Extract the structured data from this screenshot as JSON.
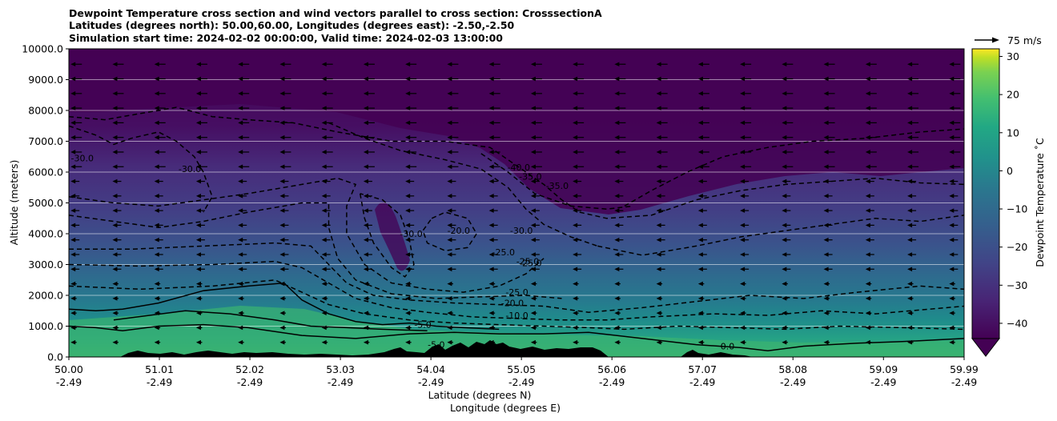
{
  "chart_data": {
    "type": "heatmap",
    "title_lines": [
      "Dewpoint Temperature cross section and wind vectors parallel to cross section: CrosssectionA",
      "Latitudes (degrees north): 50.00,60.00, Longitudes (degrees east): -2.50,-2.50",
      "Simulation start time: 2024-02-02 00:00:00, Valid time: 2024-02-03 13:00:00"
    ],
    "ylabel": "Altitude (meters)",
    "xlabel_lines": [
      "Latitude (degrees N)",
      "Longitude (degrees E)"
    ],
    "ylim": [
      0,
      10000
    ],
    "y_ticks": [
      0,
      1000,
      2000,
      3000,
      4000,
      5000,
      6000,
      7000,
      8000,
      9000,
      10000
    ],
    "y_tick_labels": [
      "0.0",
      "1000.0",
      "2000.0",
      "3000.0",
      "4000.0",
      "5000.0",
      "6000.0",
      "7000.0",
      "8000.0",
      "9000.0",
      "10000.0"
    ],
    "x_ticks": [
      {
        "lat": 50.0,
        "lat_label": "50.00",
        "lon_label": "-2.49"
      },
      {
        "lat": 51.01,
        "lat_label": "51.01",
        "lon_label": "-2.49"
      },
      {
        "lat": 52.02,
        "lat_label": "52.02",
        "lon_label": "-2.49"
      },
      {
        "lat": 53.03,
        "lat_label": "53.03",
        "lon_label": "-2.49"
      },
      {
        "lat": 54.04,
        "lat_label": "54.04",
        "lon_label": "-2.49"
      },
      {
        "lat": 55.05,
        "lat_label": "55.05",
        "lon_label": "-2.49"
      },
      {
        "lat": 56.06,
        "lat_label": "56.06",
        "lon_label": "-2.49"
      },
      {
        "lat": 57.07,
        "lat_label": "57.07",
        "lon_label": "-2.49"
      },
      {
        "lat": 58.08,
        "lat_label": "58.08",
        "lon_label": "-2.49"
      },
      {
        "lat": 59.09,
        "lat_label": "59.09",
        "lon_label": "-2.49"
      },
      {
        "lat": 59.99,
        "lat_label": "59.99",
        "lon_label": "-2.49"
      }
    ],
    "xlim": [
      50.0,
      59.99
    ],
    "colorbar": {
      "label": "Dewpoint Temperature $^\\circ$C",
      "label_display": "Dewpoint Temperature ˚C",
      "range": [
        -44,
        32
      ],
      "ticks": [
        -40,
        -30,
        -20,
        -10,
        0,
        10,
        20,
        30
      ],
      "tick_labels": [
        "−40",
        "−30",
        "−20",
        "−10",
        "0",
        "10",
        "20",
        "30"
      ],
      "extend": "min",
      "colormap": "viridis"
    },
    "wind_key": {
      "label": "75 m/s",
      "value": 75
    },
    "grid": "horizontal",
    "contour_labels": [
      {
        "text": "-30.0",
        "lat": 50.15,
        "alt": 6350
      },
      {
        "text": "-30.0",
        "lat": 51.35,
        "alt": 6000
      },
      {
        "text": "-30.0",
        "lat": 53.82,
        "alt": 3900
      },
      {
        "text": "-20.0",
        "lat": 54.35,
        "alt": 4000
      },
      {
        "text": "-40.0",
        "lat": 55.02,
        "alt": 6050
      },
      {
        "text": "-35.0",
        "lat": 55.15,
        "alt": 5750
      },
      {
        "text": "-35.0",
        "lat": 55.45,
        "alt": 5450
      },
      {
        "text": "-30.0",
        "lat": 55.05,
        "alt": 4000
      },
      {
        "text": "-25.0",
        "lat": 54.85,
        "alt": 3300
      },
      {
        "text": "-25.0",
        "lat": 55.15,
        "alt": 2950
      },
      {
        "text": "-25.0",
        "lat": 55.12,
        "alt": 3000
      },
      {
        "text": "-25.0",
        "lat": 55.0,
        "alt": 2000
      },
      {
        "text": "-20.0",
        "lat": 54.95,
        "alt": 1650
      },
      {
        "text": "-10.0",
        "lat": 55.0,
        "alt": 1250
      },
      {
        "text": "-5.0",
        "lat": 53.95,
        "alt": 950
      },
      {
        "text": "-5.0",
        "lat": 54.1,
        "alt": 300
      },
      {
        "text": "0.0",
        "lat": 57.35,
        "alt": 250
      }
    ],
    "solid_contours": [
      {
        "level": 0,
        "points": [
          [
            50.0,
            1000
          ],
          [
            50.3,
            950
          ],
          [
            50.6,
            850
          ],
          [
            51.0,
            1000
          ],
          [
            51.5,
            1050
          ],
          [
            52.0,
            950
          ],
          [
            52.6,
            700
          ],
          [
            53.2,
            600
          ],
          [
            53.8,
            750
          ],
          [
            54.3,
            800
          ],
          [
            54.8,
            750
          ],
          [
            55.3,
            750
          ],
          [
            55.8,
            800
          ],
          [
            56.4,
            600
          ],
          [
            57.0,
            400
          ],
          [
            57.5,
            300
          ],
          [
            57.8,
            200
          ],
          [
            58.2,
            350
          ],
          [
            58.8,
            450
          ],
          [
            59.3,
            500
          ],
          [
            59.99,
            600
          ]
        ]
      },
      {
        "level": -5,
        "points": [
          [
            50.0,
            1550
          ],
          [
            50.3,
            1500
          ],
          [
            50.6,
            1550
          ],
          [
            51.0,
            1750
          ],
          [
            51.5,
            2150
          ],
          [
            52.0,
            2300
          ],
          [
            52.4,
            2400
          ],
          [
            52.6,
            1850
          ],
          [
            52.9,
            1400
          ],
          [
            53.2,
            1150
          ],
          [
            53.5,
            1050
          ],
          [
            53.8,
            1100
          ],
          [
            54.1,
            1000
          ],
          [
            54.4,
            950
          ],
          [
            54.8,
            900
          ]
        ]
      },
      {
        "level": -5,
        "points": [
          [
            50.5,
            1200
          ],
          [
            50.9,
            1350
          ],
          [
            51.3,
            1500
          ],
          [
            51.8,
            1400
          ],
          [
            52.3,
            1200
          ],
          [
            52.7,
            1000
          ],
          [
            53.1,
            950
          ],
          [
            53.5,
            900
          ],
          [
            54.0,
            850
          ]
        ]
      }
    ],
    "dashed_contours": [
      {
        "level": -30,
        "points": [
          [
            50.0,
            7500
          ],
          [
            50.3,
            7200
          ],
          [
            50.5,
            6900
          ],
          [
            50.7,
            7100
          ],
          [
            51.0,
            7300
          ],
          [
            51.2,
            7000
          ],
          [
            51.4,
            6500
          ],
          [
            51.5,
            6000
          ],
          [
            51.6,
            5200
          ],
          [
            51.5,
            4700
          ]
        ]
      },
      {
        "level": -30,
        "points": [
          [
            50.0,
            7800
          ],
          [
            50.4,
            7700
          ],
          [
            50.8,
            7900
          ],
          [
            51.2,
            8100
          ],
          [
            51.6,
            7800
          ],
          [
            52.0,
            7700
          ],
          [
            52.5,
            7600
          ],
          [
            53.0,
            7300
          ],
          [
            53.6,
            7000
          ],
          [
            54.2,
            7000
          ],
          [
            54.7,
            6800
          ],
          [
            55.0,
            6200
          ],
          [
            55.3,
            5600
          ],
          [
            55.5,
            5100
          ],
          [
            55.7,
            4700
          ]
        ]
      },
      {
        "level": -30,
        "points": [
          [
            52.9,
            7600
          ],
          [
            53.3,
            7100
          ],
          [
            53.7,
            6700
          ],
          [
            54.2,
            6400
          ],
          [
            54.6,
            6100
          ],
          [
            54.9,
            5500
          ],
          [
            55.1,
            4800
          ],
          [
            55.3,
            4300
          ],
          [
            55.6,
            3900
          ],
          [
            55.9,
            3600
          ]
        ]
      },
      {
        "level": -30,
        "points": [
          [
            53.25,
            5300
          ],
          [
            53.3,
            4500
          ],
          [
            53.4,
            3700
          ],
          [
            53.6,
            2900
          ],
          [
            53.75,
            2600
          ],
          [
            53.85,
            3000
          ],
          [
            53.8,
            3800
          ],
          [
            53.7,
            4600
          ],
          [
            53.5,
            5100
          ],
          [
            53.25,
            5300
          ]
        ]
      },
      {
        "level": -20,
        "points": [
          [
            54.05,
            4500
          ],
          [
            54.2,
            4700
          ],
          [
            54.45,
            4500
          ],
          [
            54.55,
            4000
          ],
          [
            54.45,
            3550
          ],
          [
            54.2,
            3450
          ],
          [
            54.0,
            3700
          ],
          [
            53.95,
            4100
          ],
          [
            54.05,
            4500
          ]
        ]
      },
      {
        "level": -25,
        "points": [
          [
            50.0,
            5200
          ],
          [
            50.5,
            5000
          ],
          [
            51.0,
            4900
          ],
          [
            51.5,
            5100
          ],
          [
            52.0,
            5300
          ],
          [
            52.6,
            5600
          ],
          [
            53.0,
            5800
          ],
          [
            53.2,
            5600
          ],
          [
            53.1,
            4900
          ],
          [
            53.1,
            4000
          ],
          [
            53.3,
            3000
          ],
          [
            53.6,
            2400
          ],
          [
            54.0,
            2200
          ],
          [
            54.4,
            2100
          ],
          [
            54.8,
            2300
          ],
          [
            55.1,
            2700
          ],
          [
            55.3,
            3200
          ]
        ]
      },
      {
        "level": -25,
        "points": [
          [
            50.0,
            4600
          ],
          [
            50.5,
            4400
          ],
          [
            51.0,
            4200
          ],
          [
            51.5,
            4400
          ],
          [
            52.0,
            4700
          ],
          [
            52.6,
            5000
          ],
          [
            52.9,
            5000
          ],
          [
            52.9,
            4200
          ],
          [
            53.0,
            3200
          ],
          [
            53.2,
            2500
          ],
          [
            53.6,
            2050
          ],
          [
            54.1,
            1900
          ],
          [
            54.6,
            1950
          ],
          [
            55.1,
            2000
          ],
          [
            55.5,
            1900
          ]
        ]
      },
      {
        "level": -20,
        "points": [
          [
            50.0,
            3500
          ],
          [
            50.7,
            3500
          ],
          [
            51.5,
            3600
          ],
          [
            52.3,
            3700
          ],
          [
            52.7,
            3600
          ],
          [
            52.9,
            3000
          ],
          [
            53.1,
            2400
          ],
          [
            53.4,
            2000
          ],
          [
            53.8,
            1850
          ],
          [
            54.3,
            1750
          ],
          [
            54.8,
            1700
          ],
          [
            55.3,
            1650
          ],
          [
            55.8,
            1450
          ],
          [
            56.4,
            1600
          ],
          [
            57.0,
            1800
          ],
          [
            57.6,
            2000
          ],
          [
            58.2,
            1900
          ],
          [
            58.8,
            2100
          ],
          [
            59.5,
            2300
          ],
          [
            59.99,
            2200
          ]
        ]
      },
      {
        "level": -15,
        "points": [
          [
            50.0,
            3000
          ],
          [
            50.8,
            2950
          ],
          [
            51.6,
            3000
          ],
          [
            52.3,
            3100
          ],
          [
            52.6,
            2900
          ],
          [
            52.9,
            2400
          ],
          [
            53.2,
            1900
          ],
          [
            53.6,
            1600
          ],
          [
            54.0,
            1450
          ],
          [
            54.5,
            1300
          ],
          [
            55.0,
            1250
          ],
          [
            55.5,
            1200
          ],
          [
            56.0,
            1200
          ],
          [
            56.5,
            1300
          ],
          [
            57.2,
            1400
          ],
          [
            57.8,
            1350
          ],
          [
            58.4,
            1500
          ],
          [
            59.0,
            1400
          ],
          [
            59.6,
            1550
          ],
          [
            59.99,
            1650
          ]
        ]
      },
      {
        "level": -10,
        "points": [
          [
            50.0,
            2300
          ],
          [
            50.8,
            2200
          ],
          [
            51.6,
            2300
          ],
          [
            52.3,
            2500
          ],
          [
            52.6,
            2100
          ],
          [
            52.9,
            1700
          ],
          [
            53.3,
            1400
          ],
          [
            53.8,
            1200
          ],
          [
            54.3,
            1100
          ],
          [
            54.8,
            1050
          ],
          [
            55.3,
            1000
          ],
          [
            55.8,
            950
          ],
          [
            56.2,
            900
          ],
          [
            56.8,
            1000
          ],
          [
            57.4,
            950
          ],
          [
            58.0,
            900
          ],
          [
            58.6,
            1000
          ],
          [
            59.3,
            950
          ],
          [
            59.99,
            900
          ]
        ]
      },
      {
        "level": -30,
        "points": [
          [
            55.7,
            4700
          ],
          [
            56.0,
            4500
          ],
          [
            56.5,
            4600
          ],
          [
            57.0,
            5100
          ],
          [
            57.5,
            5400
          ],
          [
            58.0,
            5600
          ],
          [
            58.5,
            5700
          ],
          [
            59.0,
            5800
          ],
          [
            59.5,
            5650
          ],
          [
            59.99,
            5600
          ]
        ]
      },
      {
        "level": -25,
        "points": [
          [
            55.9,
            3600
          ],
          [
            56.4,
            3300
          ],
          [
            57.0,
            3600
          ],
          [
            57.5,
            3900
          ],
          [
            58.0,
            4100
          ],
          [
            58.5,
            4300
          ],
          [
            59.0,
            4500
          ],
          [
            59.5,
            4400
          ],
          [
            59.99,
            4600
          ]
        ]
      },
      {
        "level": -35,
        "points": [
          [
            56.2,
            4900
          ],
          [
            56.5,
            5400
          ],
          [
            56.9,
            6000
          ],
          [
            57.3,
            6500
          ],
          [
            57.8,
            6800
          ],
          [
            58.3,
            7000
          ],
          [
            58.9,
            7100
          ],
          [
            59.5,
            7300
          ],
          [
            59.99,
            7400
          ]
        ]
      },
      {
        "level": -40,
        "points": [
          [
            54.6,
            6600
          ],
          [
            54.9,
            6000
          ],
          [
            55.2,
            5300
          ],
          [
            55.6,
            4900
          ],
          [
            56.0,
            4800
          ],
          [
            56.3,
            4900
          ]
        ]
      }
    ]
  }
}
